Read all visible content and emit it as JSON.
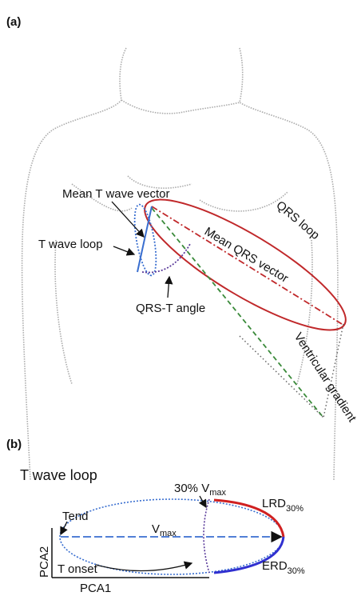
{
  "panel_a": {
    "label": "(a)",
    "mean_t_wave_vector": "Mean T wave vector",
    "t_wave_loop": "T wave loop",
    "qrs_loop": "QRS loop",
    "mean_qrs_vector": "Mean QRS vector",
    "qrs_t_angle": "QRS-T angle",
    "ventricular_gradient": "Ventricular gradient"
  },
  "panel_b": {
    "label": "(b)",
    "title": "T wave loop",
    "threshold": {
      "text": "30% V",
      "sub": "max"
    },
    "tend": "Tend",
    "vmax": {
      "text": "V",
      "sub": "max"
    },
    "lrd": {
      "text": "LRD",
      "sub": "30%"
    },
    "erd": {
      "text": "ERD",
      "sub": "30%"
    },
    "t_onset": "T onset",
    "y_axis": "PCA2",
    "x_axis": "PCA1"
  }
}
